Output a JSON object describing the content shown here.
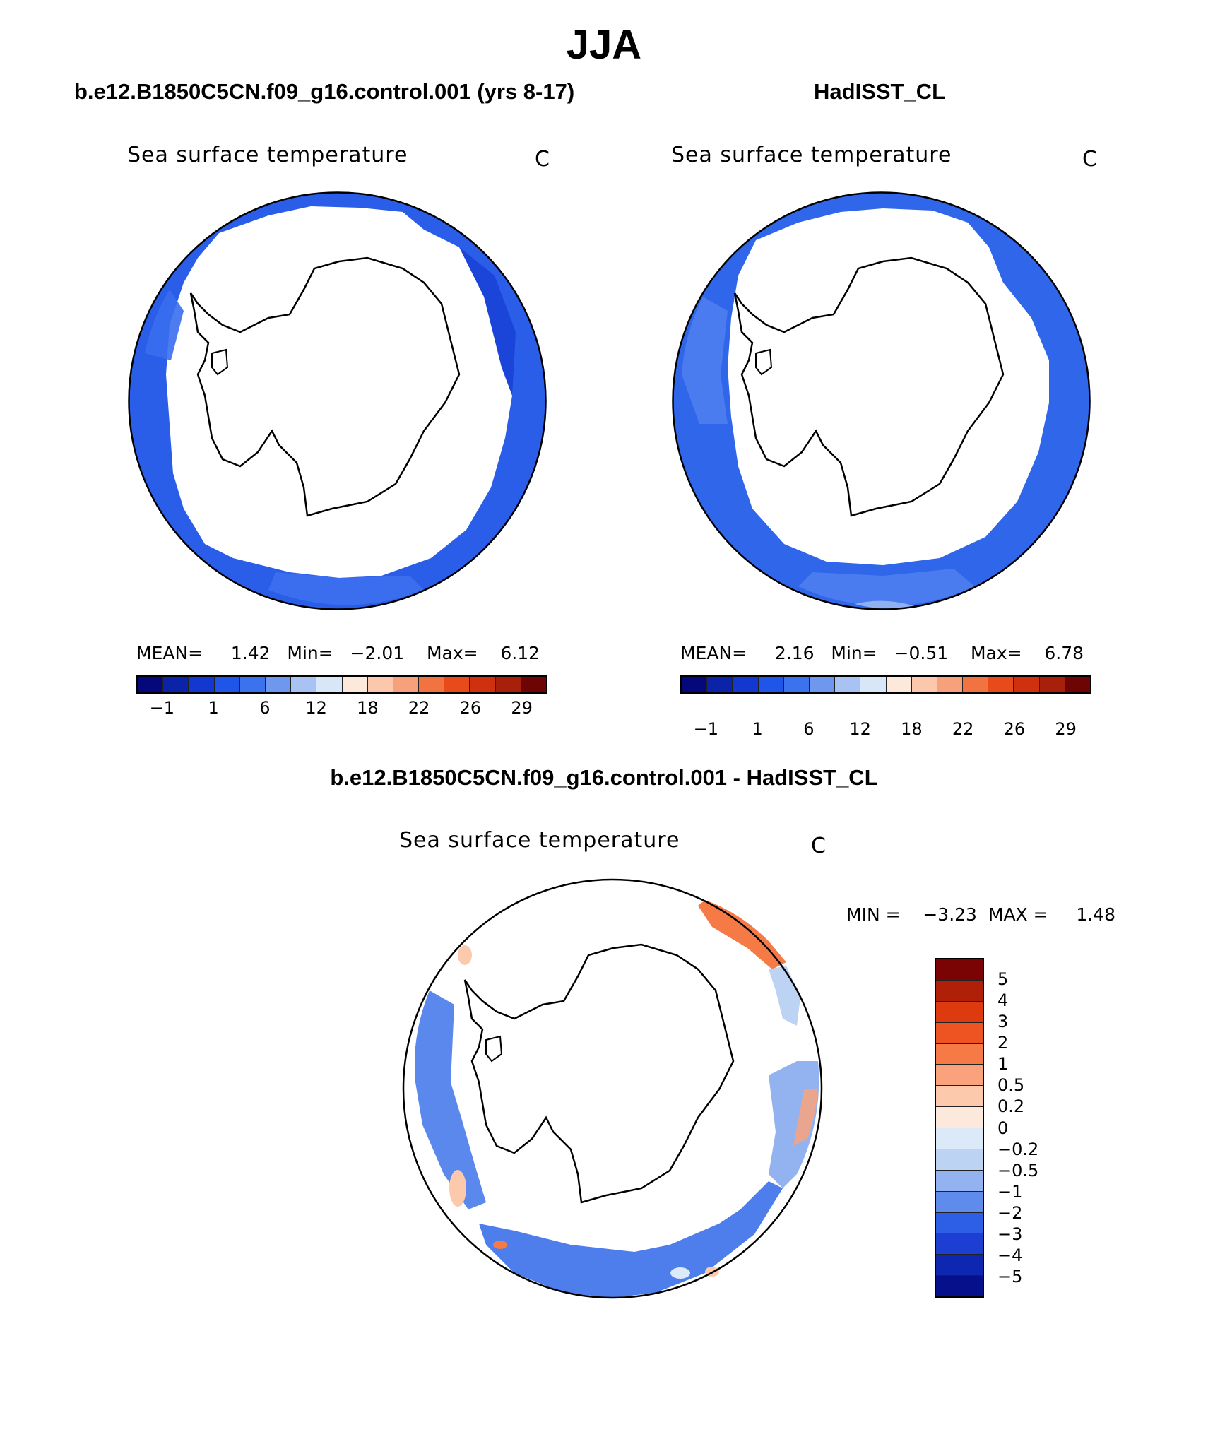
{
  "figure": {
    "season": "JJA",
    "units": "C",
    "plot_title": "Sea surface temperature"
  },
  "panel_left": {
    "title": "b.e12.B1850C5CN.f09_g16.control.001 (yrs 8-17)",
    "mean_label": "MEAN=",
    "mean_value": "1.42",
    "min_label": "Min=",
    "min_value": "−2.01",
    "max_label": "Max=",
    "max_value": "6.12"
  },
  "panel_right": {
    "title": "HadISST_CL",
    "mean_label": "MEAN=",
    "mean_value": "2.16",
    "min_label": "Min=",
    "min_value": "−0.51",
    "max_label": "Max=",
    "max_value": "6.78"
  },
  "panel_diff": {
    "title": "b.e12.B1850C5CN.f09_g16.control.001 - HadISST_CL",
    "min_label": "MIN =",
    "min_value": "−3.23",
    "max_label": "MAX =",
    "max_value": "1.48"
  },
  "chart_data": [
    {
      "type": "heatmap",
      "title": "Sea surface temperature",
      "subtitle": "b.e12.B1850C5CN.f09_g16.control.001 (yrs 8-17)",
      "units": "C",
      "projection": "south polar stereographic",
      "stats": {
        "mean": 1.42,
        "min": -2.01,
        "max": 6.12
      },
      "colorbar_levels": [
        -1,
        1,
        6,
        12,
        18,
        22,
        26,
        29
      ],
      "colorbar_tick_labels": [
        "−1",
        "1",
        "6",
        "12",
        "18",
        "22",
        "26",
        "29"
      ],
      "colorbar_colors": [
        "#04087a",
        "#0a23a8",
        "#1338d0",
        "#1f55e8",
        "#3b73ee",
        "#6e98f0",
        "#a8c2f4",
        "#d8e7f8",
        "#fde9dc",
        "#fbc8ae",
        "#f7a07c",
        "#f27342",
        "#e84a1a",
        "#cf300e",
        "#a8200a",
        "#6e0505"
      ]
    },
    {
      "type": "heatmap",
      "title": "Sea surface temperature",
      "subtitle": "HadISST_CL",
      "units": "C",
      "projection": "south polar stereographic",
      "stats": {
        "mean": 2.16,
        "min": -0.51,
        "max": 6.78
      },
      "colorbar_levels": [
        -1,
        1,
        6,
        12,
        18,
        22,
        26,
        29
      ],
      "colorbar_tick_labels": [
        "−1",
        "1",
        "6",
        "12",
        "18",
        "22",
        "26",
        "29"
      ],
      "colorbar_colors": [
        "#04087a",
        "#0a23a8",
        "#1338d0",
        "#1f55e8",
        "#3b73ee",
        "#6e98f0",
        "#a8c2f4",
        "#d8e7f8",
        "#fde9dc",
        "#fbc8ae",
        "#f7a07c",
        "#f27342",
        "#e84a1a",
        "#cf300e",
        "#a8200a",
        "#6e0505"
      ]
    },
    {
      "type": "heatmap",
      "title": "Sea surface temperature",
      "subtitle": "b.e12.B1850C5CN.f09_g16.control.001 - HadISST_CL",
      "units": "C",
      "projection": "south polar stereographic",
      "stats": {
        "min": -3.23,
        "max": 1.48
      },
      "colorbar_levels": [
        5,
        4,
        3,
        2,
        1,
        0.5,
        0.2,
        0,
        -0.2,
        -0.5,
        -1,
        -2,
        -3,
        -4,
        -5
      ],
      "colorbar_tick_labels": [
        "5",
        "4",
        "3",
        "2",
        "1",
        "0.5",
        "0.2",
        "0",
        "−0.2",
        "−0.5",
        "−1",
        "−2",
        "−3",
        "−4",
        "−5"
      ],
      "colorbar_colors": [
        "#7a0404",
        "#b01f08",
        "#de3a10",
        "#ee5422",
        "#f57a45",
        "#f9a27c",
        "#fcc9ac",
        "#fde9dc",
        "#dce9f8",
        "#bdd3f4",
        "#93b3f0",
        "#5f8cec",
        "#2c5fe6",
        "#1c3ed2",
        "#0d27b0",
        "#05108a"
      ]
    }
  ]
}
